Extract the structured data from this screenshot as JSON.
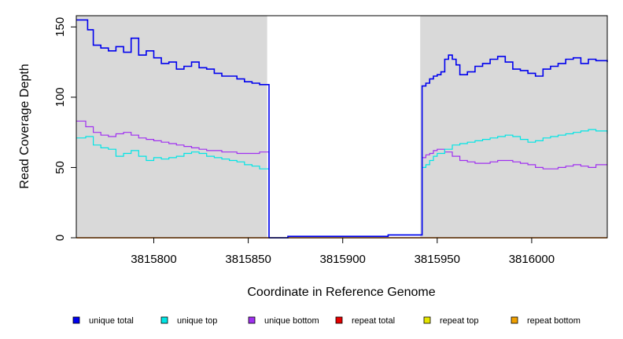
{
  "chart_data": {
    "type": "line",
    "xlabel": "Coordinate in Reference Genome",
    "ylabel": "Read Coverage Depth",
    "xlim": [
      3815759,
      3816040
    ],
    "ylim": [
      0,
      158
    ],
    "x_ticks": [
      3815800,
      3815850,
      3815900,
      3815950,
      3816000
    ],
    "y_ticks": [
      0,
      50,
      100,
      150
    ],
    "gray_regions": [
      [
        3815759,
        3815860
      ],
      [
        3815941,
        3816040
      ]
    ],
    "gap_region": [
      3815860,
      3815941
    ],
    "grid": false,
    "legend_position": "bottom",
    "series": [
      {
        "name": "unique total",
        "color": "#0000ee",
        "x": [
          3815759,
          3815765,
          3815768,
          3815772,
          3815776,
          3815780,
          3815784,
          3815788,
          3815792,
          3815796,
          3815800,
          3815804,
          3815808,
          3815812,
          3815816,
          3815820,
          3815824,
          3815828,
          3815832,
          3815836,
          3815840,
          3815844,
          3815848,
          3815852,
          3815856,
          3815860,
          3815861,
          3815871,
          3815882,
          3815900,
          3815918,
          3815924,
          3815941,
          3815942,
          3815944,
          3815946,
          3815948,
          3815950,
          3815952,
          3815954,
          3815956,
          3815958,
          3815960,
          3815962,
          3815966,
          3815970,
          3815974,
          3815978,
          3815982,
          3815986,
          3815990,
          3815994,
          3815998,
          3816002,
          3816006,
          3816010,
          3816014,
          3816018,
          3816022,
          3816026,
          3816030,
          3816034,
          3816040
        ],
        "y": [
          155,
          148,
          137,
          135,
          133,
          136,
          132,
          142,
          130,
          133,
          128,
          124,
          125,
          120,
          122,
          125,
          121,
          120,
          117,
          115,
          115,
          113,
          111,
          110,
          109,
          109,
          0,
          1,
          1,
          1,
          1,
          2,
          2,
          108,
          110,
          113,
          115,
          116,
          118,
          127,
          130,
          127,
          123,
          116,
          118,
          122,
          124,
          127,
          129,
          125,
          120,
          119,
          117,
          115,
          120,
          122,
          124,
          127,
          128,
          124,
          127,
          126,
          125
        ]
      },
      {
        "name": "unique top",
        "color": "#00e5e5",
        "x": [
          3815759,
          3815764,
          3815768,
          3815772,
          3815776,
          3815780,
          3815784,
          3815788,
          3815792,
          3815796,
          3815800,
          3815804,
          3815808,
          3815812,
          3815816,
          3815820,
          3815824,
          3815828,
          3815832,
          3815836,
          3815840,
          3815844,
          3815848,
          3815852,
          3815856,
          3815860,
          3815861,
          3815871,
          3815882,
          3815900,
          3815918,
          3815924,
          3815941,
          3815942,
          3815944,
          3815946,
          3815948,
          3815950,
          3815954,
          3815958,
          3815962,
          3815966,
          3815970,
          3815974,
          3815978,
          3815982,
          3815986,
          3815990,
          3815994,
          3815998,
          3816002,
          3816006,
          3816010,
          3816014,
          3816018,
          3816022,
          3816026,
          3816030,
          3816034,
          3816040
        ],
        "y": [
          71,
          72,
          66,
          64,
          63,
          58,
          60,
          62,
          58,
          55,
          57,
          56,
          57,
          58,
          60,
          61,
          60,
          58,
          57,
          56,
          55,
          54,
          52,
          51,
          49,
          49,
          0,
          1,
          1,
          1,
          1,
          2,
          2,
          50,
          52,
          55,
          58,
          60,
          63,
          66,
          67,
          68,
          69,
          70,
          71,
          72,
          73,
          72,
          70,
          68,
          69,
          71,
          72,
          73,
          74,
          75,
          76,
          77,
          76,
          74
        ]
      },
      {
        "name": "unique bottom",
        "color": "#a030f0",
        "x": [
          3815759,
          3815764,
          3815768,
          3815772,
          3815776,
          3815780,
          3815784,
          3815788,
          3815792,
          3815796,
          3815800,
          3815804,
          3815808,
          3815812,
          3815816,
          3815820,
          3815824,
          3815828,
          3815832,
          3815836,
          3815840,
          3815844,
          3815848,
          3815852,
          3815856,
          3815860,
          3815861,
          3815871,
          3815882,
          3815900,
          3815918,
          3815924,
          3815941,
          3815942,
          3815944,
          3815946,
          3815948,
          3815950,
          3815954,
          3815958,
          3815962,
          3815966,
          3815970,
          3815974,
          3815978,
          3815982,
          3815986,
          3815990,
          3815994,
          3815998,
          3816002,
          3816006,
          3816010,
          3816014,
          3816018,
          3816022,
          3816026,
          3816030,
          3816034,
          3816040
        ],
        "y": [
          83,
          79,
          75,
          73,
          72,
          74,
          75,
          73,
          71,
          70,
          69,
          68,
          67,
          66,
          65,
          64,
          63,
          62,
          62,
          61,
          61,
          60,
          60,
          60,
          61,
          61,
          0,
          1,
          1,
          1,
          1,
          2,
          2,
          57,
          59,
          60,
          62,
          63,
          61,
          58,
          55,
          54,
          53,
          53,
          54,
          55,
          55,
          54,
          53,
          52,
          50,
          49,
          49,
          50,
          51,
          52,
          51,
          50,
          52,
          52
        ]
      },
      {
        "name": "repeat total",
        "color": "#e50000",
        "x": [
          3815759,
          3816040
        ],
        "y": [
          0,
          0
        ]
      },
      {
        "name": "repeat top",
        "color": "#e5e500",
        "x": [
          3815759,
          3816040
        ],
        "y": [
          0,
          0
        ]
      },
      {
        "name": "repeat bottom",
        "color": "#f0a000",
        "x": [
          3815759,
          3816040
        ],
        "y": [
          0,
          0
        ]
      }
    ]
  }
}
